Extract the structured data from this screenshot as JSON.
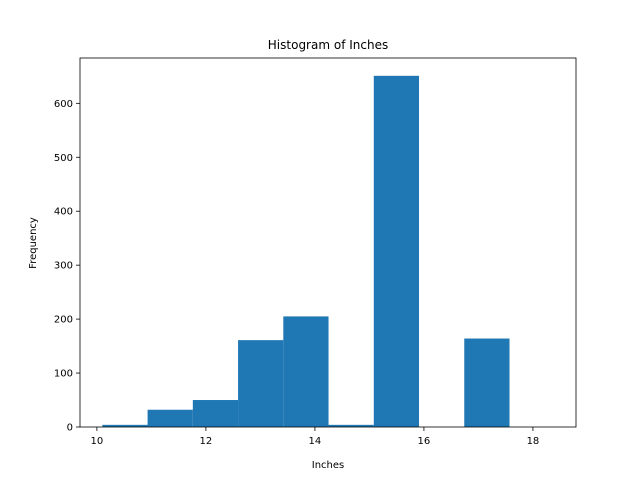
{
  "chart_data": {
    "type": "bar",
    "title": "Histogram of Inches",
    "xlabel": "Inches",
    "ylabel": "Frequency",
    "xlim": [
      9.69,
      18.79
    ],
    "ylim": [
      0,
      684
    ],
    "x_ticks": [
      10,
      12,
      14,
      16,
      18
    ],
    "y_ticks": [
      0,
      100,
      200,
      300,
      400,
      500,
      600
    ],
    "bar_color": "#1f77b4",
    "grid": false,
    "bins": [
      {
        "x0": 10.1,
        "x1": 10.93,
        "value": 4
      },
      {
        "x0": 10.93,
        "x1": 11.76,
        "value": 32
      },
      {
        "x0": 11.76,
        "x1": 12.59,
        "value": 50
      },
      {
        "x0": 12.59,
        "x1": 13.42,
        "value": 161
      },
      {
        "x0": 13.42,
        "x1": 14.25,
        "value": 205
      },
      {
        "x0": 14.25,
        "x1": 15.08,
        "value": 4
      },
      {
        "x0": 15.08,
        "x1": 15.91,
        "value": 651
      },
      {
        "x0": 15.91,
        "x1": 16.74,
        "value": 0
      },
      {
        "x0": 16.74,
        "x1": 17.57,
        "value": 164
      },
      {
        "x0": 17.57,
        "x1": 18.4,
        "value": 0
      }
    ]
  }
}
